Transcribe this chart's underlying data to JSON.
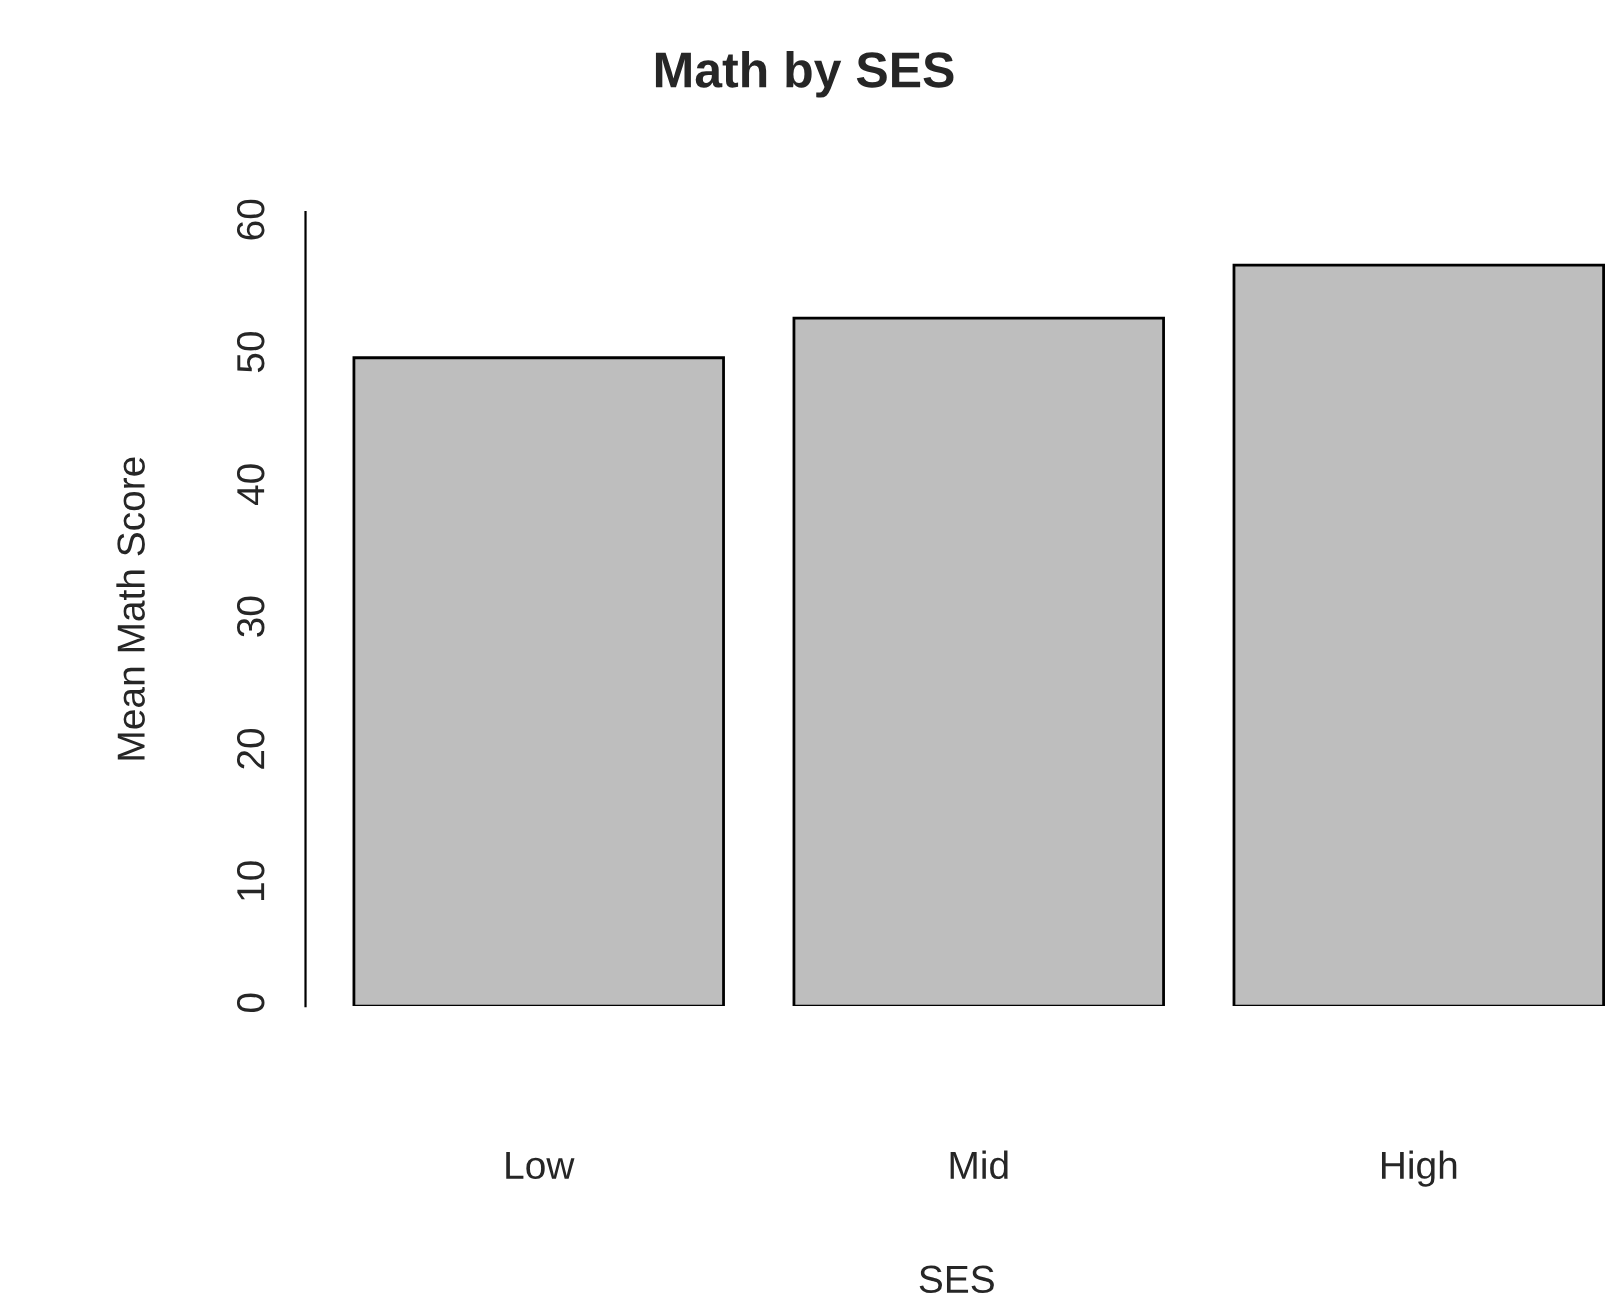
{
  "chart_data": {
    "type": "bar",
    "title": "Math by SES",
    "xlabel": "SES",
    "ylabel": "Mean Math Score",
    "categories": [
      "Low",
      "Mid",
      "High"
    ],
    "values": [
      49,
      52,
      56
    ],
    "color": "#bebebe",
    "ylim": [
      0,
      60
    ],
    "yticks": [
      0,
      10,
      20,
      30,
      40,
      50,
      60
    ],
    "grid": false
  }
}
